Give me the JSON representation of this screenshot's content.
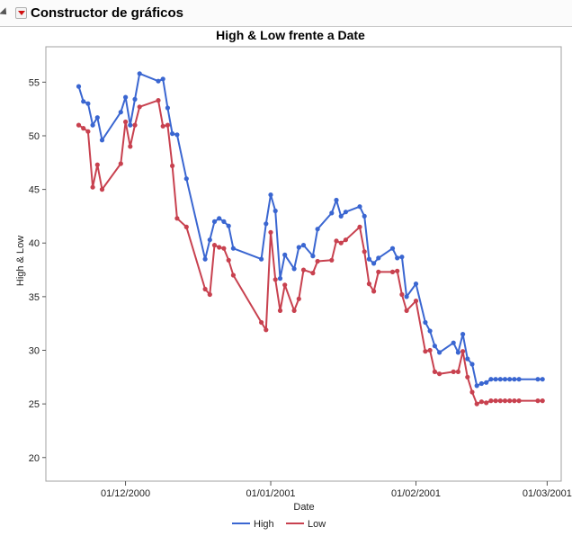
{
  "app": {
    "title": "Constructor de gráficos"
  },
  "colors": {
    "high": "#3a66d1",
    "low": "#c8414f",
    "frame": "#a0a0a0",
    "background": "#ffffff"
  },
  "chart_data": {
    "type": "line",
    "title": "High & Low frente a Date",
    "xlabel": "Date",
    "ylabel": "High & Low",
    "xlim": [
      "2000-11-14",
      "2001-03-04"
    ],
    "ylim": [
      17.8,
      58.3
    ],
    "xticks": [
      {
        "date": "2000-12-01",
        "label": "01/12/2000"
      },
      {
        "date": "2001-01-01",
        "label": "01/01/2001"
      },
      {
        "date": "2001-02-01",
        "label": "01/02/2001"
      },
      {
        "date": "2001-03-01",
        "label": "01/03/2001"
      }
    ],
    "yticks": [
      20,
      25,
      30,
      35,
      40,
      45,
      50,
      55
    ],
    "grid": false,
    "legend_position": "bottom",
    "x": [
      "2000-11-21",
      "2000-11-22",
      "2000-11-23",
      "2000-11-24",
      "2000-11-25",
      "2000-11-26",
      "2000-11-30",
      "2000-12-01",
      "2000-12-02",
      "2000-12-03",
      "2000-12-04",
      "2000-12-08",
      "2000-12-09",
      "2000-12-10",
      "2000-12-11",
      "2000-12-12",
      "2000-12-14",
      "2000-12-18",
      "2000-12-19",
      "2000-12-20",
      "2000-12-21",
      "2000-12-22",
      "2000-12-23",
      "2000-12-24",
      "2000-12-30",
      "2000-12-31",
      "2001-01-01",
      "2001-01-02",
      "2001-01-03",
      "2001-01-04",
      "2001-01-06",
      "2001-01-07",
      "2001-01-08",
      "2001-01-10",
      "2001-01-11",
      "2001-01-14",
      "2001-01-15",
      "2001-01-16",
      "2001-01-17",
      "2001-01-20",
      "2001-01-21",
      "2001-01-22",
      "2001-01-23",
      "2001-01-24",
      "2001-01-27",
      "2001-01-28",
      "2001-01-29",
      "2001-01-30",
      "2001-02-01",
      "2001-02-03",
      "2001-02-04",
      "2001-02-05",
      "2001-02-06",
      "2001-02-09",
      "2001-02-10",
      "2001-02-11",
      "2001-02-12",
      "2001-02-13",
      "2001-02-14",
      "2001-02-15",
      "2001-02-16",
      "2001-02-17",
      "2001-02-18",
      "2001-02-19",
      "2001-02-20",
      "2001-02-21",
      "2001-02-22",
      "2001-02-23",
      "2001-02-27",
      "2001-02-28"
    ],
    "series": [
      {
        "name": "High",
        "values": [
          54.6,
          53.2,
          53.0,
          51.0,
          51.7,
          49.6,
          52.2,
          53.6,
          51.0,
          53.4,
          55.8,
          55.1,
          55.3,
          52.6,
          50.2,
          50.1,
          46.0,
          38.5,
          40.3,
          42.0,
          42.3,
          42.0,
          41.6,
          39.5,
          38.5,
          41.8,
          44.5,
          43.0,
          36.7,
          38.9,
          37.6,
          39.6,
          39.8,
          38.8,
          41.3,
          42.8,
          44.0,
          42.5,
          42.9,
          43.4,
          42.5,
          38.5,
          38.1,
          38.6,
          39.5,
          38.6,
          38.7,
          35.0,
          36.2,
          32.6,
          31.8,
          30.4,
          29.8,
          30.7,
          29.8,
          31.5,
          29.2,
          28.7,
          26.7,
          26.9,
          27.0,
          27.3,
          27.3,
          27.3,
          27.3,
          27.3,
          27.3,
          27.3,
          27.3,
          27.3
        ]
      },
      {
        "name": "Low",
        "values": [
          51.0,
          50.7,
          50.4,
          45.2,
          47.3,
          45.0,
          47.4,
          51.3,
          49.0,
          51.0,
          52.7,
          53.3,
          50.9,
          51.0,
          47.2,
          42.3,
          41.5,
          35.7,
          35.2,
          39.8,
          39.6,
          39.5,
          38.4,
          37.0,
          32.6,
          31.9,
          41.0,
          36.6,
          33.7,
          36.1,
          33.7,
          34.8,
          37.5,
          37.2,
          38.3,
          38.4,
          40.2,
          40.0,
          40.3,
          41.5,
          39.2,
          36.2,
          35.5,
          37.3,
          37.3,
          37.4,
          35.2,
          33.7,
          34.6,
          29.9,
          30.0,
          28.0,
          27.8,
          28.0,
          28.0,
          29.9,
          27.5,
          26.1,
          25.0,
          25.2,
          25.1,
          25.3,
          25.3,
          25.3,
          25.3,
          25.3,
          25.3,
          25.3,
          25.3,
          25.3
        ]
      }
    ]
  }
}
